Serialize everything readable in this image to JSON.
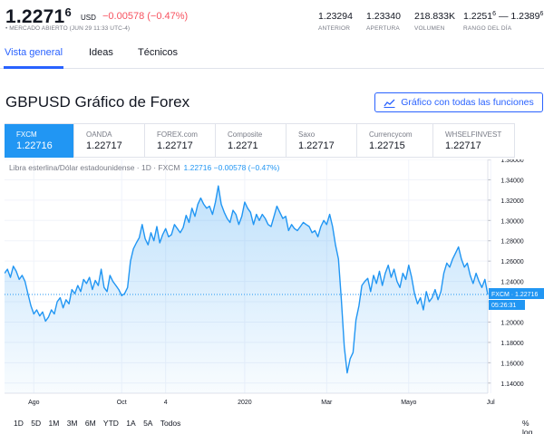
{
  "quote": {
    "price_main": "1.2271",
    "price_sup": "6",
    "currency": "USD",
    "change": "−0.00578 (−0.47%)",
    "status": "• MERCADO ABIERTO (JUN 29 11:33 UTC-4)",
    "stats": [
      {
        "value": "1.23294",
        "value_sup": "",
        "label": "ANTERIOR"
      },
      {
        "value": "1.23340",
        "value_sup": "",
        "label": "APERTURA"
      },
      {
        "value": "218.833K",
        "value_sup": "",
        "label": "VOLUMEN"
      },
      {
        "value": "1.2251",
        "value_sup": "6",
        "value2": " — 1.2389",
        "value2_sup": "6",
        "label": "RANGO DEL DÍA"
      }
    ]
  },
  "tabs": [
    {
      "label": "Vista general",
      "active": true
    },
    {
      "label": "Ideas",
      "active": false
    },
    {
      "label": "Técnicos",
      "active": false
    }
  ],
  "section": {
    "title": "GBPUSD Gráfico de Forex",
    "button": "Gráfico con todas las funciones",
    "button_icon": "chart-line-icon"
  },
  "sources": [
    {
      "name": "FXCM",
      "price": "1.22716",
      "active": true
    },
    {
      "name": "OANDA",
      "price": "1.22717",
      "active": false
    },
    {
      "name": "FOREX.com",
      "price": "1.22717",
      "active": false
    },
    {
      "name": "Composite",
      "price": "1.2271",
      "active": false
    },
    {
      "name": "Saxo",
      "price": "1.22717",
      "active": false
    },
    {
      "name": "Currencycom",
      "price": "1.22715",
      "active": false
    },
    {
      "name": "WHSELFINVEST",
      "price": "1.22717",
      "active": false
    }
  ],
  "chart_meta": {
    "legend": "Libra esterlina/Dólar estadounidense · 1D · FXCM",
    "legend_values": "1.22716 −0.00578 (−0.47%)",
    "price_label": "FXCM · 1.22716",
    "countdown": "05:26:31",
    "ranges": [
      "1D",
      "5D",
      "1M",
      "3M",
      "6M",
      "YTD",
      "1A",
      "5A",
      "Todos"
    ],
    "scale_options": [
      "%",
      "log"
    ]
  },
  "colors": {
    "accent": "#2962ff",
    "line": "#2196f3",
    "negative": "#f7525f",
    "positive": "#26a69a"
  },
  "chart_data": {
    "type": "area",
    "title": "",
    "xlabel": "",
    "ylabel": "",
    "ylim": [
      1.13,
      1.36
    ],
    "y_ticks": [
      1.14,
      1.16,
      1.18,
      1.2,
      1.22,
      1.24,
      1.26,
      1.28,
      1.3,
      1.32,
      1.34,
      1.36
    ],
    "x_ticks": [
      {
        "label": "Ago",
        "idx": 10
      },
      {
        "label": "Oct",
        "idx": 40
      },
      {
        "label": "4",
        "idx": 55
      },
      {
        "label": "2020",
        "idx": 82
      },
      {
        "label": "Mar",
        "idx": 110
      },
      {
        "label": "Mayo",
        "idx": 138
      },
      {
        "label": "Jul",
        "idx": 166
      }
    ],
    "last_value": 1.22716,
    "values": [
      1.248,
      1.252,
      1.244,
      1.255,
      1.25,
      1.242,
      1.246,
      1.24,
      1.228,
      1.216,
      1.208,
      1.212,
      1.206,
      1.21,
      1.201,
      1.205,
      1.212,
      1.208,
      1.22,
      1.224,
      1.214,
      1.222,
      1.218,
      1.232,
      1.228,
      1.236,
      1.23,
      1.242,
      1.238,
      1.244,
      1.232,
      1.241,
      1.236,
      1.252,
      1.234,
      1.23,
      1.246,
      1.24,
      1.236,
      1.232,
      1.226,
      1.228,
      1.234,
      1.26,
      1.272,
      1.278,
      1.283,
      1.296,
      1.282,
      1.276,
      1.288,
      1.28,
      1.294,
      1.278,
      1.286,
      1.292,
      1.284,
      1.286,
      1.296,
      1.292,
      1.288,
      1.293,
      1.305,
      1.298,
      1.312,
      1.304,
      1.316,
      1.322,
      1.316,
      1.312,
      1.314,
      1.306,
      1.318,
      1.334,
      1.316,
      1.308,
      1.302,
      1.298,
      1.31,
      1.306,
      1.296,
      1.304,
      1.318,
      1.312,
      1.308,
      1.296,
      1.306,
      1.3,
      1.306,
      1.302,
      1.296,
      1.294,
      1.304,
      1.314,
      1.308,
      1.302,
      1.304,
      1.29,
      1.296,
      1.292,
      1.29,
      1.294,
      1.298,
      1.296,
      1.294,
      1.288,
      1.29,
      1.284,
      1.294,
      1.3,
      1.296,
      1.306,
      1.294,
      1.276,
      1.262,
      1.222,
      1.176,
      1.15,
      1.164,
      1.17,
      1.202,
      1.216,
      1.236,
      1.24,
      1.243,
      1.23,
      1.246,
      1.238,
      1.25,
      1.236,
      1.248,
      1.256,
      1.244,
      1.252,
      1.24,
      1.234,
      1.248,
      1.242,
      1.256,
      1.244,
      1.228,
      1.218,
      1.224,
      1.212,
      1.23,
      1.22,
      1.224,
      1.232,
      1.222,
      1.23,
      1.248,
      1.258,
      1.254,
      1.262,
      1.268,
      1.274,
      1.262,
      1.254,
      1.258,
      1.246,
      1.238,
      1.248,
      1.24,
      1.234,
      1.242,
      1.227
    ]
  }
}
